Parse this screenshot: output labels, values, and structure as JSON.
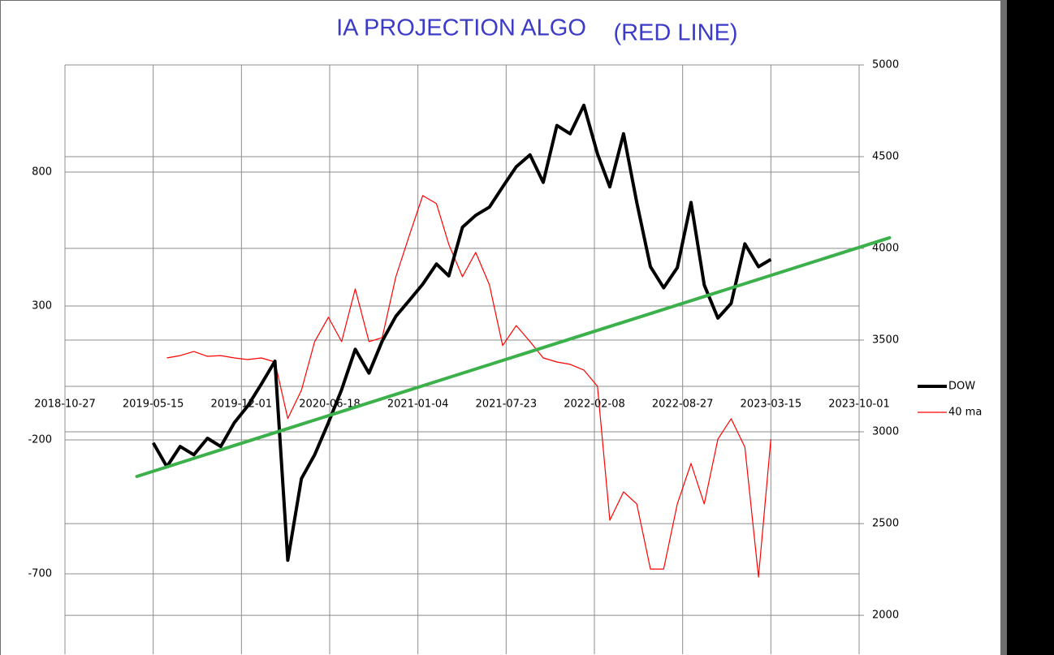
{
  "chart_data": {
    "type": "line",
    "title": "IA PROJECTION ALGO",
    "subtitle": "(RED LINE)",
    "x": [
      "2019-05-15",
      "2019-06-15",
      "2019-07-15",
      "2019-08-15",
      "2019-09-15",
      "2019-10-15",
      "2019-11-15",
      "2019-12-15",
      "2020-01-15",
      "2020-02-15",
      "2020-03-15",
      "2020-04-15",
      "2020-05-15",
      "2020-06-15",
      "2020-07-15",
      "2020-08-15",
      "2020-09-15",
      "2020-10-15",
      "2020-11-15",
      "2020-12-15",
      "2021-01-15",
      "2021-02-15",
      "2021-03-15",
      "2021-04-15",
      "2021-05-15",
      "2021-06-15",
      "2021-07-15",
      "2021-08-15",
      "2021-09-15",
      "2021-10-15",
      "2021-11-15",
      "2021-12-15",
      "2022-01-15",
      "2022-02-15",
      "2022-03-15",
      "2022-04-15",
      "2022-05-15",
      "2022-06-15",
      "2022-07-15",
      "2022-08-15",
      "2022-09-15",
      "2022-10-15",
      "2022-11-15",
      "2022-12-15",
      "2023-01-15",
      "2023-02-15",
      "2023-03-15"
    ],
    "series": [
      {
        "name": "DOW",
        "color": "#000000",
        "axis": "y2",
        "values": [
          2940,
          2810,
          2920,
          2875,
          2965,
          2920,
          3050,
          3140,
          3260,
          3385,
          2300,
          2745,
          2875,
          3050,
          3230,
          3450,
          3320,
          3495,
          3630,
          3715,
          3805,
          3915,
          3850,
          4115,
          4180,
          4225,
          4335,
          4445,
          4510,
          4360,
          4670,
          4625,
          4780,
          4515,
          4335,
          4625,
          4250,
          3900,
          3785,
          3895,
          4250,
          3800,
          3620,
          3700,
          4025,
          3900,
          3940
        ]
      },
      {
        "name": "40 ma",
        "color": "#ff0000",
        "values": [
          null,
          106,
          115,
          130,
          112,
          115,
          106,
          100,
          106,
          91,
          -120,
          -15,
          167,
          258,
          167,
          364,
          167,
          182,
          409,
          561,
          712,
          682,
          530,
          409,
          500,
          379,
          152,
          227,
          167,
          106,
          91,
          82,
          61,
          0,
          -500,
          -394,
          -439,
          -682,
          -682,
          -439,
          -288,
          -439,
          -197,
          -121,
          -227,
          -712,
          -197
        ]
      }
    ],
    "trendline": {
      "color": "#3cb04a",
      "axis": "y2",
      "x": [
        "2019-04-08",
        "2023-12-09"
      ],
      "values": [
        2757,
        4058
      ]
    },
    "xlim": [
      "2018-10-27",
      "2023-10-01"
    ],
    "xticks": [
      "2018-10-27",
      "2019-05-15",
      "2019-12-01",
      "2020-06-18",
      "2021-01-04",
      "2021-07-23",
      "2022-02-08",
      "2022-08-27",
      "2023-03-15",
      "2023-10-01"
    ],
    "ylim": [
      -1000,
      1200
    ],
    "yticks": [
      -700,
      -200,
      300,
      800
    ],
    "y2lim": [
      1788,
      5000
    ],
    "y2ticks": [
      2000,
      2500,
      3000,
      3500,
      4000,
      4500,
      5000
    ],
    "grid": true,
    "legend": "right"
  }
}
